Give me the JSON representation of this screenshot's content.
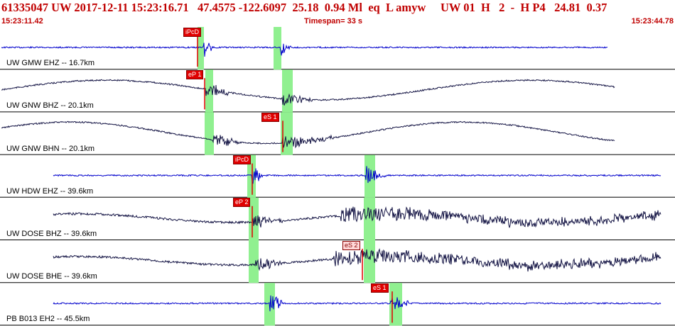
{
  "header": {
    "title": "61335047 UW 2017-12-11 15:23:16.71   47.4575 -122.6097  25.18  0.94 Ml  eq  L amyw     UW 01  H   2  -  H P4   24.81  0.37",
    "start_time": "15:23:11.42",
    "timespan": "Timespan=  33 s",
    "end_time": "15:23:44.78"
  },
  "channels": [
    {
      "label": "UW GMW EHZ -- 16.7km",
      "color": "#0000cc",
      "picks": [
        "iPcD"
      ]
    },
    {
      "label": "UW GNW BHZ -- 20.1km",
      "color": "#151545",
      "picks": [
        "eP 1"
      ]
    },
    {
      "label": "UW GNW BHN -- 20.1km",
      "color": "#151545",
      "picks": [
        "eS 1"
      ]
    },
    {
      "label": "UW HDW EHZ -- 39.6km",
      "color": "#0000cc",
      "picks": [
        "iPcD"
      ]
    },
    {
      "label": "UW DOSE BHZ -- 39.6km",
      "color": "#151545",
      "picks": [
        "eP 2"
      ]
    },
    {
      "label": "UW DOSE BHE -- 39.6km",
      "color": "#151545",
      "picks": [
        "eS 2"
      ]
    },
    {
      "label": "PB B013 EH2 -- 45.5km",
      "color": "#0000cc",
      "picks": [
        "eS 1"
      ]
    }
  ],
  "colors": {
    "title": "#c00000",
    "pick": "#e00000",
    "phase_window": "#90f090"
  }
}
